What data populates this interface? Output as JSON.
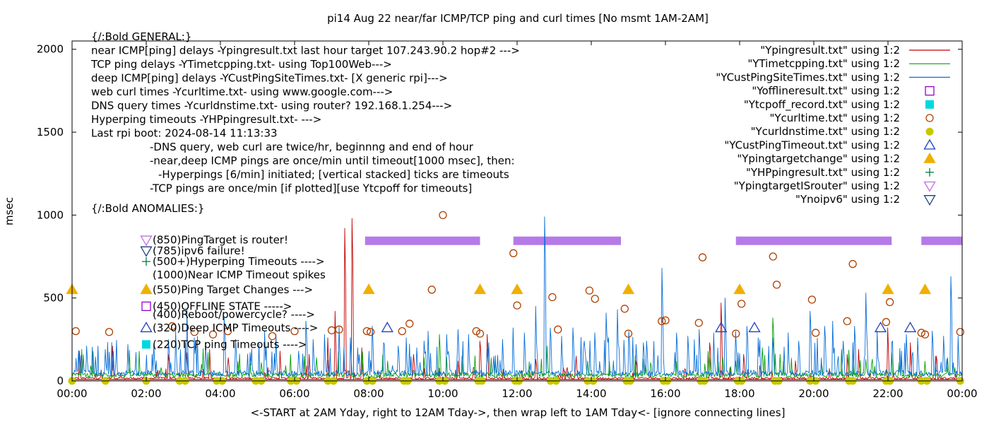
{
  "chart_data": {
    "type": "line",
    "title": "pi14 Aug 22  near/far ICMP/TCP ping and curl times [No msmt 1AM-2AM]",
    "xlabel": "<-START at 2AM Yday, right to 12AM Tday->, then wrap left to 1AM Tday<- [ignore connecting lines]",
    "ylabel": "msec",
    "xlim": [
      0,
      24
    ],
    "ylim": [
      0,
      2050
    ],
    "x_ticks": [
      {
        "v": 0,
        "label": "00:00"
      },
      {
        "v": 2,
        "label": "02:00"
      },
      {
        "v": 4,
        "label": "04:00"
      },
      {
        "v": 6,
        "label": "06:00"
      },
      {
        "v": 8,
        "label": "08:00"
      },
      {
        "v": 10,
        "label": "10:00"
      },
      {
        "v": 12,
        "label": "12:00"
      },
      {
        "v": 14,
        "label": "14:00"
      },
      {
        "v": 16,
        "label": "16:00"
      },
      {
        "v": 18,
        "label": "18:00"
      },
      {
        "v": 20,
        "label": "20:00"
      },
      {
        "v": 22,
        "label": "22:00"
      },
      {
        "v": 24,
        "label": "00:00"
      }
    ],
    "y_ticks": [
      {
        "v": 0,
        "label": "0"
      },
      {
        "v": 500,
        "label": "500"
      },
      {
        "v": 1000,
        "label": "1000"
      },
      {
        "v": 1500,
        "label": "1500"
      },
      {
        "v": 2000,
        "label": "2000"
      }
    ],
    "grid": false,
    "legend_position": "top-right",
    "annotations": [
      {
        "v": 2075,
        "indent": 0,
        "text": "{/:Bold GENERAL:}"
      },
      {
        "v": 1992,
        "indent": 0,
        "text": "near ICMP[ping] delays -Ypingresult.txt last hour target 107.243.90.2 hop#2 --->"
      },
      {
        "v": 1909,
        "indent": 0,
        "text": "TCP ping delays -YTimetcpping.txt- using Top100Web--->"
      },
      {
        "v": 1826,
        "indent": 0,
        "text": "deep ICMP[ping] delays -YCustPingSiteTimes.txt- [X generic rpi]--->"
      },
      {
        "v": 1743,
        "indent": 0,
        "text": "web curl times -Ycurltime.txt- using www.google.com--->"
      },
      {
        "v": 1660,
        "indent": 0,
        "text": "DNS query times -Ycurldnstime.txt- using router? 192.168.1.254--->"
      },
      {
        "v": 1577,
        "indent": 0,
        "text": "Hyperping timeouts -YHPpingresult.txt- --->"
      },
      {
        "v": 1494,
        "indent": 0,
        "text": "Last rpi boot: 2024-08-14 11:13:33"
      },
      {
        "v": 1411,
        "indent": 1,
        "text": "-DNS query, web curl are twice/hr, beginnng and end of hour"
      },
      {
        "v": 1328,
        "indent": 1,
        "text": "-near,deep ICMP pings are once/min until timeout[1000 msec], then:"
      },
      {
        "v": 1245,
        "indent": 2,
        "text": "-Hyperpings [6/min] initiated; [vertical stacked] ticks are timeouts"
      },
      {
        "v": 1162,
        "indent": 1,
        "text": "-TCP pings are once/min [if plotted][use Ytcpoff for timeouts]"
      },
      {
        "v": 1040,
        "indent": 0,
        "text": "{/:Bold ANOMALIES:}"
      }
    ],
    "anomaly_keys": [
      {
        "v": 850,
        "marker": "tri-down-violet",
        "text": "(850)PingTarget is router!"
      },
      {
        "v": 785,
        "marker": "tri-down-navy",
        "text": "(785)ipv6 failure!"
      },
      {
        "v": 720,
        "marker": "plus-green",
        "text": "(500+)Hyperping Timeouts ---->"
      },
      {
        "v": 640,
        "marker": "none",
        "text": "(1000)Near ICMP Timeout spikes"
      },
      {
        "v": 550,
        "marker": "tri-up-orange",
        "text": "(550)Ping Target Changes --->"
      },
      {
        "v": 450,
        "marker": "square-purple",
        "text": "(450)OFFLINE STATE ----->"
      },
      {
        "v": 400,
        "marker": "none",
        "text": "(400)Reboot/powercycle? ---->"
      },
      {
        "v": 320,
        "marker": "tri-up-blue",
        "text": "(320)Deep ICMP Timeouts ---->"
      },
      {
        "v": 220,
        "marker": "square-cyan",
        "text": "(220)TCP ping Timeouts ---->"
      }
    ],
    "legend": [
      {
        "label": "\"Ypingresult.txt\" using 1:2",
        "style": "line",
        "color": "#c00000"
      },
      {
        "label": "\"YTimetcpping.txt\" using 1:2",
        "style": "line",
        "color": "#00a000"
      },
      {
        "label": "\"YCustPingSiteTimes.txt\" using 1:2",
        "style": "line",
        "color": "#0a6fd8"
      },
      {
        "label": "\"Yofflineresult.txt\" using 1:2",
        "style": "square-open",
        "color": "#9400d3"
      },
      {
        "label": "\"Ytcpoff_record.txt\" using 1:2",
        "style": "square-filled",
        "color": "#00d8e0"
      },
      {
        "label": "\"Ycurltime.txt\" using 1:2",
        "style": "circle-open",
        "color": "#b04000"
      },
      {
        "label": "\"Ycurldnstime.txt\" using 1:2",
        "style": "circle-filled",
        "color": "#c8c800"
      },
      {
        "label": "\"YCustPingTimeout.txt\" using 1:2",
        "style": "tri-up-open",
        "color": "#2040c0"
      },
      {
        "label": "\"Ypingtargetchange\" using 1:2",
        "style": "tri-up-filled",
        "color": "#f0b000"
      },
      {
        "label": "\"YHPpingresult.txt\" using 1:2",
        "style": "plus",
        "color": "#008040"
      },
      {
        "label": "\"YpingtargetISrouter\" using 1:2",
        "style": "tri-down-open",
        "color": "#c070e0"
      },
      {
        "label": "\"Ynoipv6\" using 1:2",
        "style": "tri-down-open",
        "color": "#204080"
      }
    ],
    "series": [
      {
        "name": "\"Ypingresult.txt\" using 1:2",
        "color": "#c00000",
        "baseline": 18,
        "spikes": [
          [
            0.2,
            180
          ],
          [
            1.1,
            210
          ],
          [
            2.6,
            160
          ],
          [
            3.1,
            170
          ],
          [
            3.7,
            190
          ],
          [
            4.2,
            140
          ],
          [
            5.6,
            180
          ],
          [
            6.4,
            160
          ],
          [
            6.9,
            260
          ],
          [
            7.1,
            420
          ],
          [
            7.35,
            920
          ],
          [
            7.55,
            980
          ],
          [
            7.8,
            200
          ],
          [
            9.2,
            160
          ],
          [
            10.4,
            120
          ],
          [
            11.0,
            240
          ],
          [
            11.2,
            280
          ],
          [
            12.5,
            130
          ],
          [
            13.6,
            150
          ],
          [
            15.2,
            120
          ],
          [
            17.2,
            230
          ],
          [
            17.5,
            470
          ],
          [
            18.1,
            160
          ],
          [
            19.5,
            120
          ],
          [
            20.9,
            160
          ],
          [
            21.2,
            190
          ],
          [
            22.0,
            320
          ],
          [
            22.6,
            230
          ],
          [
            23.3,
            150
          ]
        ]
      },
      {
        "name": "\"YTimetcpping.txt\" using 1:2",
        "color": "#00a000",
        "baseline": 40,
        "spikes": [
          [
            0.5,
            90
          ],
          [
            2.4,
            80
          ],
          [
            3.5,
            100
          ],
          [
            5.1,
            110
          ],
          [
            5.9,
            90
          ],
          [
            6.6,
            140
          ],
          [
            8.5,
            120
          ],
          [
            9.5,
            140
          ],
          [
            9.9,
            280
          ],
          [
            11.4,
            110
          ],
          [
            12.8,
            210
          ],
          [
            13.9,
            120
          ],
          [
            15.6,
            110
          ],
          [
            17.2,
            140
          ],
          [
            17.9,
            120
          ],
          [
            18.6,
            200
          ],
          [
            18.9,
            380
          ],
          [
            19.1,
            160
          ],
          [
            20.2,
            110
          ],
          [
            21.4,
            130
          ],
          [
            22.3,
            110
          ],
          [
            23.6,
            140
          ]
        ]
      },
      {
        "name": "\"YCustPingSiteTimes.txt\" using 1:2",
        "color": "#0a6fd8",
        "baseline": 52,
        "spikes": [
          [
            0.4,
            210
          ],
          [
            0.9,
            190
          ],
          [
            1.5,
            220
          ],
          [
            2.2,
            220
          ],
          [
            2.6,
            250
          ],
          [
            2.8,
            300
          ],
          [
            3.1,
            430
          ],
          [
            3.3,
            260
          ],
          [
            3.6,
            210
          ],
          [
            4.1,
            380
          ],
          [
            4.4,
            250
          ],
          [
            4.8,
            170
          ],
          [
            5.2,
            300
          ],
          [
            5.5,
            280
          ],
          [
            6.1,
            180
          ],
          [
            6.3,
            360
          ],
          [
            6.5,
            250
          ],
          [
            6.8,
            280
          ],
          [
            7.2,
            330
          ],
          [
            7.5,
            260
          ],
          [
            7.7,
            200
          ],
          [
            8.1,
            330
          ],
          [
            8.4,
            230
          ],
          [
            8.8,
            210
          ],
          [
            9.0,
            260
          ],
          [
            9.3,
            200
          ],
          [
            9.6,
            300
          ],
          [
            10.1,
            280
          ],
          [
            10.4,
            310
          ],
          [
            10.7,
            280
          ],
          [
            11.2,
            190
          ],
          [
            11.6,
            250
          ],
          [
            11.9,
            320
          ],
          [
            12.2,
            290
          ],
          [
            12.5,
            450
          ],
          [
            12.75,
            990
          ],
          [
            12.9,
            320
          ],
          [
            13.2,
            270
          ],
          [
            13.5,
            320
          ],
          [
            13.8,
            240
          ],
          [
            14.1,
            290
          ],
          [
            14.4,
            410
          ],
          [
            14.7,
            430
          ],
          [
            15.0,
            300
          ],
          [
            15.2,
            220
          ],
          [
            15.5,
            240
          ],
          [
            15.9,
            680
          ],
          [
            16.3,
            290
          ],
          [
            16.6,
            270
          ],
          [
            16.9,
            310
          ],
          [
            17.3,
            290
          ],
          [
            17.6,
            500
          ],
          [
            17.9,
            300
          ],
          [
            18.2,
            330
          ],
          [
            18.5,
            260
          ],
          [
            18.9,
            260
          ],
          [
            19.3,
            290
          ],
          [
            19.6,
            240
          ],
          [
            19.9,
            420
          ],
          [
            20.3,
            330
          ],
          [
            20.5,
            360
          ],
          [
            20.8,
            240
          ],
          [
            21.1,
            330
          ],
          [
            21.4,
            530
          ],
          [
            21.7,
            300
          ],
          [
            22.1,
            230
          ],
          [
            22.5,
            280
          ],
          [
            22.8,
            260
          ],
          [
            23.2,
            300
          ],
          [
            23.5,
            270
          ],
          [
            23.7,
            630
          ],
          [
            23.9,
            270
          ]
        ]
      }
    ],
    "offline_periods": [
      [
        7.9,
        11.0
      ],
      [
        11.9,
        14.8
      ],
      [
        17.9,
        22.1
      ],
      [
        22.9,
        24.0
      ]
    ],
    "offline_level": 845,
    "curl_times": [
      [
        0.1,
        300
      ],
      [
        1.0,
        295
      ],
      [
        2.7,
        330
      ],
      [
        3.3,
        295
      ],
      [
        3.8,
        280
      ],
      [
        4.2,
        300
      ],
      [
        5.4,
        270
      ],
      [
        6.0,
        300
      ],
      [
        7.0,
        305
      ],
      [
        7.2,
        310
      ],
      [
        7.95,
        300
      ],
      [
        8.05,
        295
      ],
      [
        8.9,
        300
      ],
      [
        9.1,
        345
      ],
      [
        9.7,
        550
      ],
      [
        10.0,
        1000
      ],
      [
        10.9,
        300
      ],
      [
        11.0,
        285
      ],
      [
        11.9,
        770
      ],
      [
        12.0,
        455
      ],
      [
        12.95,
        505
      ],
      [
        13.1,
        310
      ],
      [
        13.95,
        545
      ],
      [
        14.1,
        495
      ],
      [
        14.9,
        435
      ],
      [
        15.0,
        285
      ],
      [
        15.9,
        360
      ],
      [
        16.0,
        365
      ],
      [
        16.9,
        350
      ],
      [
        17.0,
        745
      ],
      [
        17.9,
        285
      ],
      [
        18.05,
        465
      ],
      [
        18.9,
        750
      ],
      [
        19.0,
        580
      ],
      [
        19.95,
        490
      ],
      [
        20.05,
        290
      ],
      [
        20.9,
        360
      ],
      [
        21.05,
        705
      ],
      [
        21.95,
        355
      ],
      [
        22.05,
        475
      ],
      [
        22.9,
        290
      ],
      [
        23.0,
        280
      ],
      [
        23.95,
        295
      ]
    ],
    "dns_times": [
      0.0,
      0.9,
      2.0,
      2.9,
      3.05,
      3.9,
      4.05,
      4.95,
      5.1,
      5.9,
      6.05,
      6.9,
      7.05,
      7.95,
      8.1,
      8.95,
      9.05,
      9.9,
      10.05,
      10.95,
      11.05,
      11.95,
      12.05,
      12.9,
      13.05,
      13.9,
      14.05,
      14.95,
      15.05,
      15.95,
      16.05,
      16.95,
      17.05,
      17.95,
      18.05,
      18.95,
      19.05,
      19.9,
      20.05,
      20.95,
      21.05,
      21.95,
      22.05,
      22.9,
      23.05,
      23.95
    ],
    "dns_level": 0,
    "ping_target_changes": [
      0.0,
      8.0,
      11.0,
      12.0,
      15.0,
      18.0,
      22.0,
      23.0
    ],
    "ping_target_level": 550,
    "deep_icmp_timeouts": [
      8.5,
      17.5,
      18.4,
      21.8,
      22.6
    ],
    "deep_icmp_timeout_level": 320
  }
}
